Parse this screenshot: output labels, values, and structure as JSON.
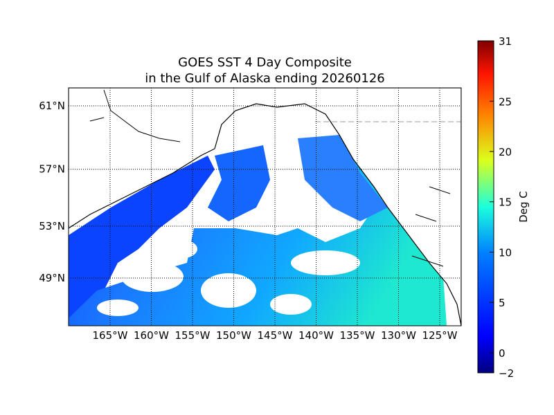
{
  "chart_data": {
    "type": "heatmap",
    "title": [
      "GOES SST 4 Day Composite",
      "in the Gulf of Alaska ending 20260126"
    ],
    "lat_ticks": [
      {
        "value": 61,
        "label": "61°N"
      },
      {
        "value": 57,
        "label": "57°N"
      },
      {
        "value": 53,
        "label": "53°N"
      },
      {
        "value": 49,
        "label": "49°N"
      }
    ],
    "lon_ticks": [
      {
        "value": -165,
        "label": "165°W"
      },
      {
        "value": -160,
        "label": "160°W"
      },
      {
        "value": -155,
        "label": "155°W"
      },
      {
        "value": -150,
        "label": "150°W"
      },
      {
        "value": -145,
        "label": "145°W"
      },
      {
        "value": -140,
        "label": "140°W"
      },
      {
        "value": -135,
        "label": "135°W"
      },
      {
        "value": -130,
        "label": "130°W"
      },
      {
        "value": -125,
        "label": "125°W"
      }
    ],
    "colorbar": {
      "label": "Deg C",
      "min": -2,
      "max": 31,
      "ticks": [
        -2,
        0,
        5,
        10,
        15,
        20,
        25,
        31
      ],
      "colormap": "jet"
    },
    "grid": true
  }
}
